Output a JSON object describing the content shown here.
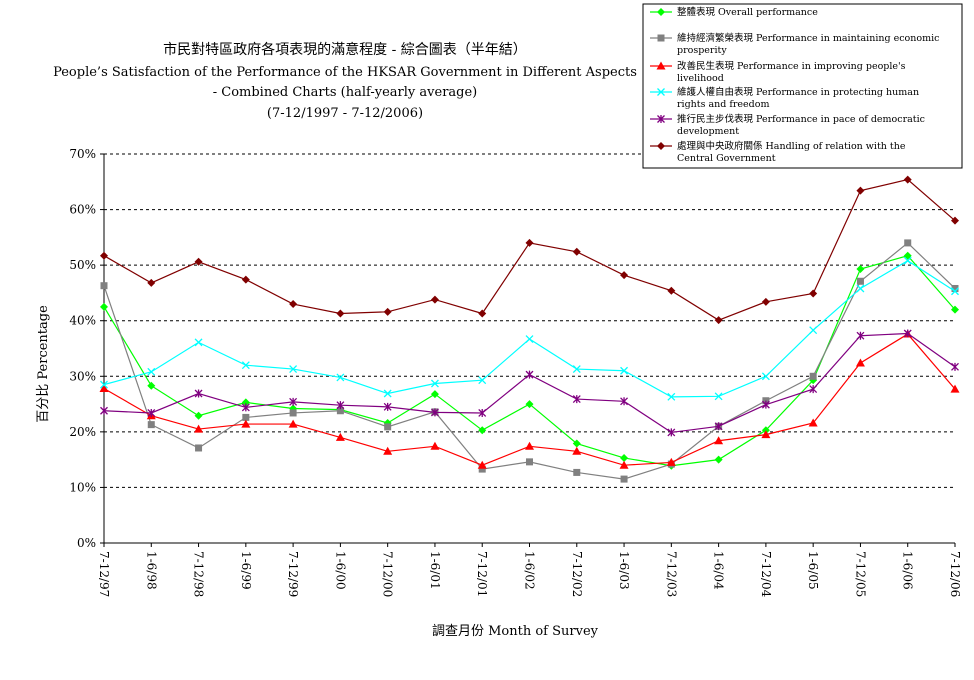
{
  "chart_data": {
    "type": "line",
    "title_zh": "市民對特區政府各項表現的滿意程度 - 綜合圖表（半年結）",
    "title_en_1": "People’s Satisfaction of the Performance of the HKSAR Government in Different Aspects",
    "title_en_2": "- Combined Charts (half-yearly average)",
    "title_period": "(7-12/1997 - 7-12/2006)",
    "ylabel": "百分比 Percentage",
    "xlabel": "調查月份 Month of Survey",
    "ylim": [
      0,
      70
    ],
    "yticks": [
      0,
      10,
      20,
      30,
      40,
      50,
      60,
      70
    ],
    "ytick_labels": [
      "0%",
      "10%",
      "20%",
      "30%",
      "40%",
      "50%",
      "60%",
      "70%"
    ],
    "grid": "horizontal dashed",
    "legend_position": "top-right",
    "categories": [
      "7-12/97",
      "1-6/98",
      "7-12/98",
      "1-6/99",
      "7-12/99",
      "1-6/00",
      "7-12/00",
      "1-6/01",
      "7-12/01",
      "1-6/02",
      "7-12/02",
      "1-6/03",
      "7-12/03",
      "1-6/04",
      "7-12/04",
      "1-6/05",
      "7-12/05",
      "1-6/06",
      "7-12/06"
    ],
    "series": [
      {
        "name": "整體表現 Overall performance",
        "color": "#00ff00",
        "marker": "diamond",
        "values": [
          42.5,
          28.3,
          22.9,
          25.3,
          24.2,
          24.0,
          21.6,
          26.8,
          20.3,
          25.0,
          17.9,
          15.3,
          13.9,
          15.0,
          20.3,
          29.3,
          49.3,
          51.7,
          42.0
        ]
      },
      {
        "name": "維持經濟繁榮表現 Performance in maintaining economic prosperity",
        "color": "#808080",
        "marker": "square",
        "values": [
          46.3,
          21.3,
          17.1,
          22.6,
          23.4,
          23.8,
          20.9,
          23.6,
          13.3,
          14.6,
          12.7,
          11.5,
          14.2,
          21.0,
          25.6,
          30.0,
          47.1,
          54.0,
          45.8
        ]
      },
      {
        "name": "改善民生表現 Performance in improving people's livelihood",
        "color": "#ff0000",
        "marker": "triangle",
        "values": [
          27.8,
          22.9,
          20.5,
          21.4,
          21.4,
          19.0,
          16.5,
          17.4,
          14.0,
          17.4,
          16.5,
          14.0,
          14.5,
          18.4,
          19.5,
          21.6,
          32.4,
          37.6,
          27.7
        ]
      },
      {
        "name": "維護人權自由表現 Performance in protecting human rights and freedom",
        "color": "#00ffff",
        "marker": "x",
        "values": [
          28.5,
          30.8,
          36.1,
          32.0,
          31.3,
          29.8,
          26.9,
          28.7,
          29.3,
          36.7,
          31.3,
          31.0,
          26.3,
          26.4,
          30.0,
          38.3,
          45.8,
          50.8,
          45.3
        ]
      },
      {
        "name": "推行民主步伐表現 Performance in pace of democratic development",
        "color": "#800080",
        "marker": "star",
        "values": [
          23.8,
          23.4,
          26.9,
          24.4,
          25.4,
          24.8,
          24.5,
          23.5,
          23.4,
          30.3,
          25.9,
          25.5,
          19.9,
          21.0,
          24.9,
          27.7,
          37.3,
          37.7,
          31.7
        ]
      },
      {
        "name": "處理與中央政府關係 Handling of relation with the Central Government",
        "color": "#800000",
        "marker": "diamond",
        "values": [
          51.7,
          46.8,
          50.6,
          47.4,
          43.0,
          41.3,
          41.6,
          43.8,
          41.3,
          54.0,
          52.4,
          48.2,
          45.4,
          40.1,
          43.4,
          44.9,
          63.4,
          65.4,
          58.0
        ]
      }
    ]
  }
}
